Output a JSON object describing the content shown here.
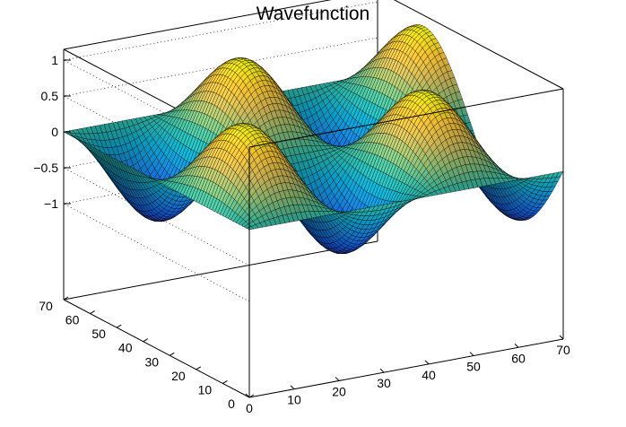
{
  "chart_data": {
    "type": "surface",
    "title": "Wavefunction",
    "function": "sin(2*pi*x/40) * sin(pi*y/35)",
    "x": {
      "range": [
        0,
        70
      ],
      "ticks": [
        0,
        10,
        20,
        30,
        40,
        50,
        60,
        70
      ],
      "label": ""
    },
    "y": {
      "range": [
        0,
        70
      ],
      "ticks": [
        0,
        10,
        20,
        30,
        40,
        50,
        60,
        70
      ],
      "label": ""
    },
    "z": {
      "range": [
        -1.15,
        1.15
      ],
      "ticks": [
        -1,
        -0.5,
        0,
        0.5,
        1
      ],
      "tick_labels": [
        "−1",
        "−0.5",
        "0",
        "0.5",
        "1"
      ],
      "label": ""
    },
    "grid": true,
    "palette": [
      "#352a87",
      "#0f5cdd",
      "#1481d6",
      "#06a4ca",
      "#2eb7a4",
      "#87bf77",
      "#d1bb59",
      "#fec832",
      "#f9fb0e"
    ],
    "grid_resolution": 70
  }
}
